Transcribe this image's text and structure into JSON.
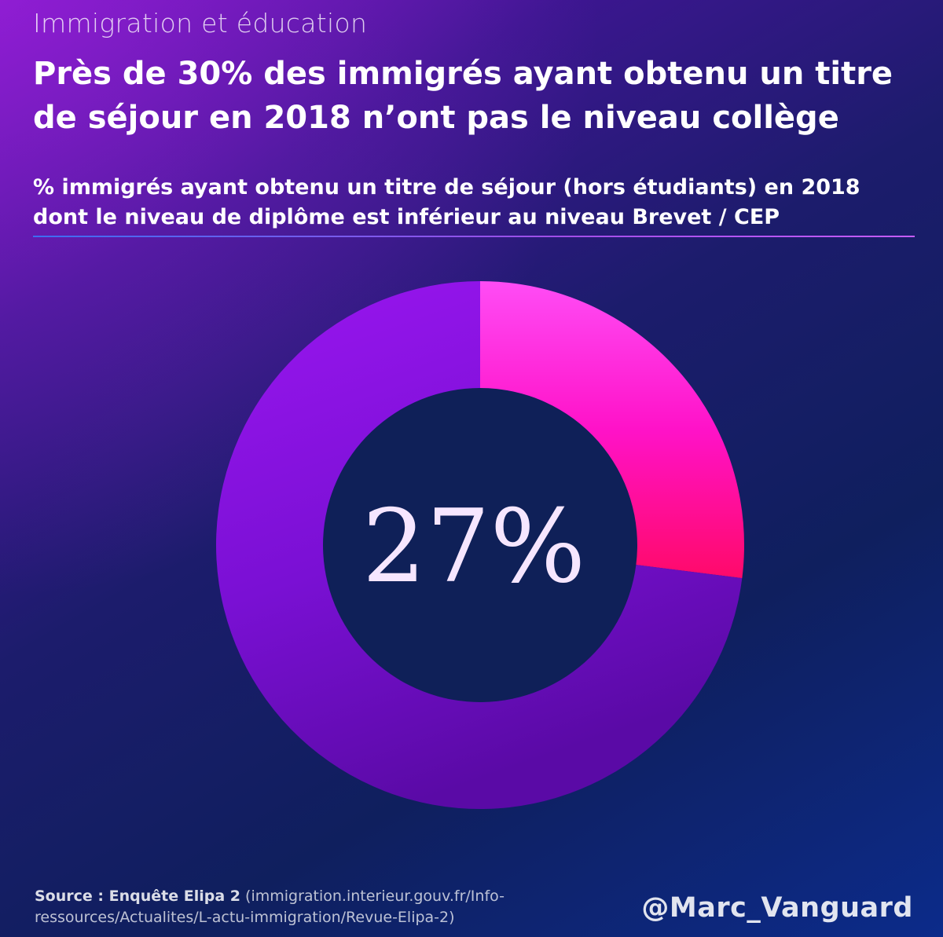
{
  "header": {
    "category": "Immigration et éducation",
    "title": "Près de 30% des immigrés ayant obtenu un titre de séjour en 2018 n’ont pas le niveau collège"
  },
  "chart_data": {
    "type": "pie",
    "subtitle": "% immigrés ayant obtenu un titre de séjour (hors étudiants) en 2018 dont le niveau de diplôme est inférieur au niveau Brevet / CEP",
    "value": 27,
    "center_label": "27%",
    "slices": [
      {
        "value": 27,
        "color": "#ff1aa8"
      },
      {
        "value": 73,
        "color": "#7a12d6"
      }
    ]
  },
  "footer": {
    "source_label": "Source : Enquête Elipa 2",
    "source_detail": "(immigration.interieur.gouv.fr/Info-ressources/Actualites/L-actu-immigration/Revue-Elipa-2)",
    "handle": "@Marc_Vanguard"
  }
}
